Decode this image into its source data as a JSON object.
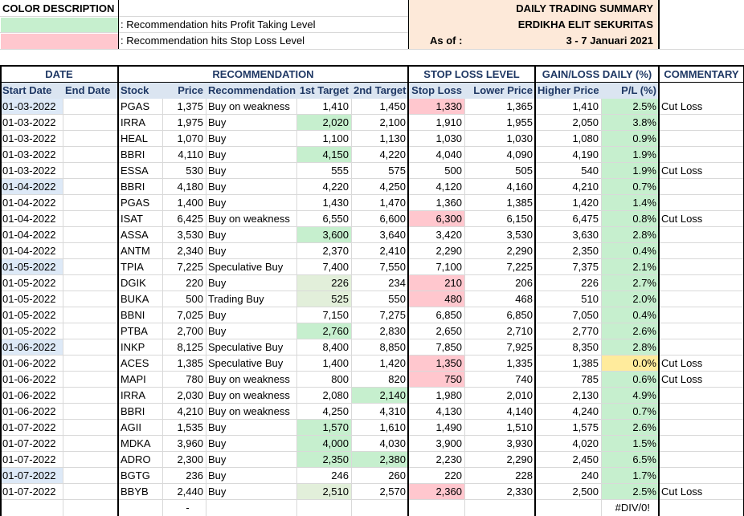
{
  "legend": {
    "title": "COLOR DESCRIPTION",
    "profit_text": ": Recommendation hits Profit Taking Level",
    "stop_text": ": Recommendation hits Stop Loss Level",
    "profit_color": "#c6efce",
    "stop_color": "#ffc7ce"
  },
  "summary": {
    "title": "DAILY TRADING SUMMARY",
    "company": "ERDIKHA ELIT SEKURITAS",
    "as_of_label": "As of :",
    "period": "3 - 7 Januari 2021",
    "bg_color": "#fde9d9"
  },
  "group_headers": {
    "date": "DATE",
    "recommendation": "RECOMMENDATION",
    "stop_loss_level": "STOP LOSS LEVEL",
    "gain_loss": "GAIN/LOSS DAILY (%)",
    "commentary": "COMMENTARY"
  },
  "columns": {
    "start_date": "Start Date",
    "end_date": "End Date",
    "stock": "Stock",
    "price": "Price",
    "recommendation": "Recommendation",
    "target1": "1st Target",
    "target2": "2nd Target",
    "stop_loss": "Stop Loss",
    "lower_price": "Lower Price",
    "higher_price": "Higher Price",
    "pl": "P/L (%)"
  },
  "rows": [
    {
      "start": "01-03-2022",
      "end": "",
      "stock": "PGAS",
      "price": "1,375",
      "rec": "Buy on weakness",
      "t1": "1,410",
      "t2": "1,450",
      "sl": "1,330",
      "lower": "1,365",
      "higher": "1,410",
      "pl": "2.5%",
      "comment": "Cut Loss",
      "date_hl": true,
      "t1_hl": "",
      "t2_hl": "",
      "sl_hl": true,
      "pl_hl": "green"
    },
    {
      "start": "01-03-2022",
      "end": "",
      "stock": "IRRA",
      "price": "1,975",
      "rec": "Buy",
      "t1": "2,020",
      "t2": "2,100",
      "sl": "1,910",
      "lower": "1,955",
      "higher": "2,050",
      "pl": "3.8%",
      "comment": "",
      "date_hl": false,
      "t1_hl": "green",
      "t2_hl": "",
      "sl_hl": false,
      "pl_hl": "green"
    },
    {
      "start": "01-03-2022",
      "end": "",
      "stock": "HEAL",
      "price": "1,070",
      "rec": "Buy",
      "t1": "1,100",
      "t2": "1,130",
      "sl": "1,030",
      "lower": "1,030",
      "higher": "1,080",
      "pl": "0.9%",
      "comment": "",
      "date_hl": false,
      "t1_hl": "",
      "t2_hl": "",
      "sl_hl": false,
      "pl_hl": "green"
    },
    {
      "start": "01-03-2022",
      "end": "",
      "stock": "BBRI",
      "price": "4,110",
      "rec": "Buy",
      "t1": "4,150",
      "t2": "4,220",
      "sl": "4,040",
      "lower": "4,090",
      "higher": "4,190",
      "pl": "1.9%",
      "comment": "",
      "date_hl": false,
      "t1_hl": "green",
      "t2_hl": "",
      "sl_hl": false,
      "pl_hl": "green"
    },
    {
      "start": "01-03-2022",
      "end": "",
      "stock": "ESSA",
      "price": "530",
      "rec": "Buy",
      "t1": "555",
      "t2": "575",
      "sl": "500",
      "lower": "505",
      "higher": "540",
      "pl": "1.9%",
      "comment": "Cut Loss",
      "date_hl": false,
      "t1_hl": "",
      "t2_hl": "",
      "sl_hl": false,
      "pl_hl": "green"
    },
    {
      "start": "01-04-2022",
      "end": "",
      "stock": "BBRI",
      "price": "4,180",
      "rec": "Buy",
      "t1": "4,220",
      "t2": "4,250",
      "sl": "4,120",
      "lower": "4,160",
      "higher": "4,210",
      "pl": "0.7%",
      "comment": "",
      "date_hl": true,
      "t1_hl": "",
      "t2_hl": "",
      "sl_hl": false,
      "pl_hl": "green"
    },
    {
      "start": "01-04-2022",
      "end": "",
      "stock": "PGAS",
      "price": "1,400",
      "rec": "Buy",
      "t1": "1,430",
      "t2": "1,470",
      "sl": "1,360",
      "lower": "1,385",
      "higher": "1,420",
      "pl": "1.4%",
      "comment": "",
      "date_hl": false,
      "t1_hl": "",
      "t2_hl": "",
      "sl_hl": false,
      "pl_hl": "green"
    },
    {
      "start": "01-04-2022",
      "end": "",
      "stock": "ISAT",
      "price": "6,425",
      "rec": "Buy on weakness",
      "t1": "6,550",
      "t2": "6,600",
      "sl": "6,300",
      "lower": "6,150",
      "higher": "6,475",
      "pl": "0.8%",
      "comment": "Cut Loss",
      "date_hl": false,
      "t1_hl": "",
      "t2_hl": "",
      "sl_hl": true,
      "pl_hl": "green"
    },
    {
      "start": "01-04-2022",
      "end": "",
      "stock": "ASSA",
      "price": "3,530",
      "rec": "Buy",
      "t1": "3,600",
      "t2": "3,640",
      "sl": "3,420",
      "lower": "3,530",
      "higher": "3,630",
      "pl": "2.8%",
      "comment": "",
      "date_hl": false,
      "t1_hl": "green",
      "t2_hl": "",
      "sl_hl": false,
      "pl_hl": "green"
    },
    {
      "start": "01-04-2022",
      "end": "",
      "stock": "ANTM",
      "price": "2,340",
      "rec": "Buy",
      "t1": "2,370",
      "t2": "2,410",
      "sl": "2,290",
      "lower": "2,290",
      "higher": "2,350",
      "pl": "0.4%",
      "comment": "",
      "date_hl": false,
      "t1_hl": "",
      "t2_hl": "",
      "sl_hl": false,
      "pl_hl": "green"
    },
    {
      "start": "01-05-2022",
      "end": "",
      "stock": "TPIA",
      "price": "7,225",
      "rec": "Speculative Buy",
      "t1": "7,400",
      "t2": "7,550",
      "sl": "7,100",
      "lower": "7,225",
      "higher": "7,375",
      "pl": "2.1%",
      "comment": "",
      "date_hl": true,
      "t1_hl": "",
      "t2_hl": "",
      "sl_hl": false,
      "pl_hl": "green"
    },
    {
      "start": "01-05-2022",
      "end": "",
      "stock": "DGIK",
      "price": "220",
      "rec": "Buy",
      "t1": "226",
      "t2": "234",
      "sl": "210",
      "lower": "206",
      "higher": "226",
      "pl": "2.7%",
      "comment": "",
      "date_hl": false,
      "t1_hl": "light",
      "t2_hl": "",
      "sl_hl": true,
      "pl_hl": "green"
    },
    {
      "start": "01-05-2022",
      "end": "",
      "stock": "BUKA",
      "price": "500",
      "rec": "Trading Buy",
      "t1": "525",
      "t2": "550",
      "sl": "480",
      "lower": "468",
      "higher": "510",
      "pl": "2.0%",
      "comment": "",
      "date_hl": false,
      "t1_hl": "light",
      "t2_hl": "",
      "sl_hl": true,
      "pl_hl": "green"
    },
    {
      "start": "01-05-2022",
      "end": "",
      "stock": "BBNI",
      "price": "7,025",
      "rec": "Buy",
      "t1": "7,150",
      "t2": "7,275",
      "sl": "6,850",
      "lower": "6,850",
      "higher": "7,050",
      "pl": "0.4%",
      "comment": "",
      "date_hl": false,
      "t1_hl": "",
      "t2_hl": "",
      "sl_hl": false,
      "pl_hl": "green"
    },
    {
      "start": "01-05-2022",
      "end": "",
      "stock": "PTBA",
      "price": "2,700",
      "rec": "Buy",
      "t1": "2,760",
      "t2": "2,830",
      "sl": "2,650",
      "lower": "2,710",
      "higher": "2,770",
      "pl": "2.6%",
      "comment": "",
      "date_hl": false,
      "t1_hl": "green",
      "t2_hl": "",
      "sl_hl": false,
      "pl_hl": "green"
    },
    {
      "start": "01-06-2022",
      "end": "",
      "stock": "INKP",
      "price": "8,125",
      "rec": "Speculative Buy",
      "t1": "8,400",
      "t2": "8,850",
      "sl": "7,850",
      "lower": "7,925",
      "higher": "8,350",
      "pl": "2.8%",
      "comment": "",
      "date_hl": true,
      "t1_hl": "",
      "t2_hl": "",
      "sl_hl": false,
      "pl_hl": "green"
    },
    {
      "start": "01-06-2022",
      "end": "",
      "stock": "ACES",
      "price": "1,385",
      "rec": "Speculative Buy",
      "t1": "1,400",
      "t2": "1,420",
      "sl": "1,350",
      "lower": "1,335",
      "higher": "1,385",
      "pl": "0.0%",
      "comment": "Cut Loss",
      "date_hl": false,
      "t1_hl": "",
      "t2_hl": "",
      "sl_hl": true,
      "pl_hl": "yellow"
    },
    {
      "start": "01-06-2022",
      "end": "",
      "stock": "MAPI",
      "price": "780",
      "rec": "Buy on weakness",
      "t1": "800",
      "t2": "820",
      "sl": "750",
      "lower": "740",
      "higher": "785",
      "pl": "0.6%",
      "comment": "Cut Loss",
      "date_hl": false,
      "t1_hl": "",
      "t2_hl": "",
      "sl_hl": true,
      "pl_hl": "green"
    },
    {
      "start": "01-06-2022",
      "end": "",
      "stock": "IRRA",
      "price": "2,030",
      "rec": "Buy on weakness",
      "t1": "2,080",
      "t2": "2,140",
      "sl": "1,980",
      "lower": "2,010",
      "higher": "2,130",
      "pl": "4.9%",
      "comment": "",
      "date_hl": false,
      "t1_hl": "",
      "t2_hl": "green",
      "sl_hl": false,
      "pl_hl": "green"
    },
    {
      "start": "01-06-2022",
      "end": "",
      "stock": "BBRI",
      "price": "4,210",
      "rec": "Buy on weakness",
      "t1": "4,250",
      "t2": "4,310",
      "sl": "4,130",
      "lower": "4,140",
      "higher": "4,240",
      "pl": "0.7%",
      "comment": "",
      "date_hl": false,
      "t1_hl": "",
      "t2_hl": "",
      "sl_hl": false,
      "pl_hl": "green"
    },
    {
      "start": "01-07-2022",
      "end": "",
      "stock": "AGII",
      "price": "1,535",
      "rec": "Buy",
      "t1": "1,570",
      "t2": "1,610",
      "sl": "1,490",
      "lower": "1,510",
      "higher": "1,575",
      "pl": "2.6%",
      "comment": "",
      "date_hl": false,
      "t1_hl": "green",
      "t2_hl": "",
      "sl_hl": false,
      "pl_hl": "green"
    },
    {
      "start": "01-07-2022",
      "end": "",
      "stock": "MDKA",
      "price": "3,960",
      "rec": "Buy",
      "t1": "4,000",
      "t2": "4,030",
      "sl": "3,900",
      "lower": "3,930",
      "higher": "4,020",
      "pl": "1.5%",
      "comment": "",
      "date_hl": false,
      "t1_hl": "green",
      "t2_hl": "",
      "sl_hl": false,
      "pl_hl": "green"
    },
    {
      "start": "01-07-2022",
      "end": "",
      "stock": "ADRO",
      "price": "2,300",
      "rec": "Buy",
      "t1": "2,350",
      "t2": "2,380",
      "sl": "2,230",
      "lower": "2,290",
      "higher": "2,450",
      "pl": "6.5%",
      "comment": "",
      "date_hl": false,
      "t1_hl": "green",
      "t2_hl": "green",
      "sl_hl": false,
      "pl_hl": "green"
    },
    {
      "start": "01-07-2022",
      "end": "",
      "stock": "BGTG",
      "price": "236",
      "rec": "Buy",
      "t1": "246",
      "t2": "260",
      "sl": "220",
      "lower": "228",
      "higher": "240",
      "pl": "1.7%",
      "comment": "",
      "date_hl": true,
      "t1_hl": "",
      "t2_hl": "",
      "sl_hl": false,
      "pl_hl": "green"
    },
    {
      "start": "01-07-2022",
      "end": "",
      "stock": "BBYB",
      "price": "2,440",
      "rec": "Buy",
      "t1": "2,510",
      "t2": "2,570",
      "sl": "2,360",
      "lower": "2,330",
      "higher": "2,500",
      "pl": "2.5%",
      "comment": "Cut Loss",
      "date_hl": false,
      "t1_hl": "light",
      "t2_hl": "",
      "sl_hl": true,
      "pl_hl": "green"
    }
  ],
  "footer": {
    "price_dash": "-",
    "pl_total": "#DIV/0!"
  },
  "highlight_colors": {
    "green": "#c6efce",
    "light_green": "#e2efda",
    "red": "#ffc7ce",
    "yellow": "#ffeb9c",
    "date_blue": "#dde9f7"
  }
}
